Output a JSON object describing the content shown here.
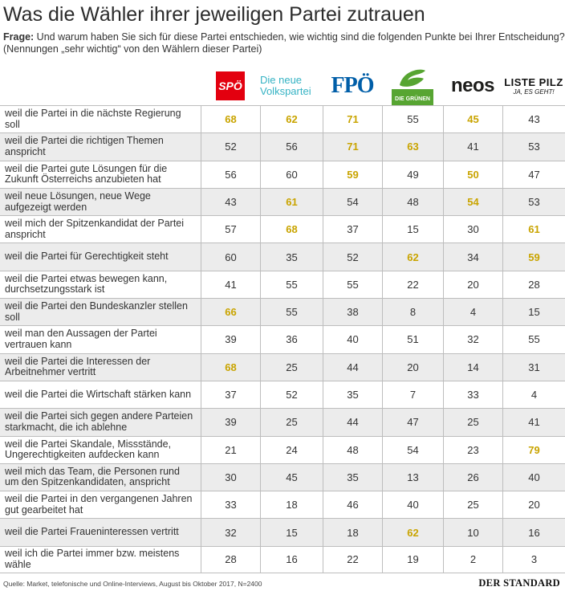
{
  "title": "Was die Wähler ihrer jeweiligen Partei zutrauen",
  "question": {
    "label": "Frage:",
    "text": " Und warum haben Sie sich für diese Partei entschieden, wie wichtig sind die folgenden Punkte bei Ihrer Entscheidung?",
    "note": "(Nennungen „sehr wichtig“ von den Wählern dieser Partei)"
  },
  "parties": [
    {
      "name": "SPÖ",
      "logo_text": "SPÖ",
      "color": "#e3000f"
    },
    {
      "name": "ÖVP",
      "logo_text": "Die neue Volkspartei",
      "logo_line1": "Die neue",
      "logo_line2": "Volkspartei",
      "color": "#36b3c4"
    },
    {
      "name": "FPÖ",
      "logo_text": "FPÖ",
      "color": "#005ea8"
    },
    {
      "name": "Die Grünen",
      "logo_text": "DIE GRÜNEN",
      "color": "#57a532"
    },
    {
      "name": "NEOS",
      "logo_text": "neos",
      "color": "#e84188"
    },
    {
      "name": "Liste Pilz",
      "logo_text": "LISTE PILZ",
      "logo_sub": "JA, ES GEHT!",
      "color": "#000000"
    }
  ],
  "highlight_color": "#c9a400",
  "chart_data": {
    "type": "table",
    "columns": [
      "SPÖ",
      "ÖVP",
      "FPÖ",
      "Die Grünen",
      "NEOS",
      "Liste Pilz"
    ],
    "rows": [
      {
        "label": "weil die Partei in die nächste Regierung soll",
        "values": [
          68,
          62,
          71,
          55,
          45,
          43
        ],
        "highlight": [
          true,
          true,
          true,
          false,
          true,
          false
        ]
      },
      {
        "label": "weil die Partei die richtigen Themen anspricht",
        "values": [
          52,
          56,
          71,
          63,
          41,
          53
        ],
        "highlight": [
          false,
          false,
          true,
          true,
          false,
          false
        ]
      },
      {
        "label": "weil die Partei gute Lösungen für die Zukunft Österreichs anzubieten hat",
        "values": [
          56,
          60,
          59,
          49,
          50,
          47
        ],
        "highlight": [
          false,
          false,
          true,
          false,
          true,
          false
        ]
      },
      {
        "label": "weil neue Lösungen, neue Wege aufgezeigt werden",
        "values": [
          43,
          61,
          54,
          48,
          54,
          53
        ],
        "highlight": [
          false,
          true,
          false,
          false,
          true,
          false
        ]
      },
      {
        "label": "weil mich der Spitzenkandidat der Partei anspricht",
        "values": [
          57,
          68,
          37,
          15,
          30,
          61
        ],
        "highlight": [
          false,
          true,
          false,
          false,
          false,
          true
        ]
      },
      {
        "label": "weil die Partei für Gerechtigkeit steht",
        "values": [
          60,
          35,
          52,
          62,
          34,
          59
        ],
        "highlight": [
          false,
          false,
          false,
          true,
          false,
          true
        ]
      },
      {
        "label": "weil die Partei etwas bewegen kann, durchsetzungsstark ist",
        "values": [
          41,
          55,
          55,
          22,
          20,
          28
        ],
        "highlight": [
          false,
          false,
          false,
          false,
          false,
          false
        ]
      },
      {
        "label": "weil die Partei den Bundeskanzler stellen soll",
        "values": [
          66,
          55,
          38,
          8,
          4,
          15
        ],
        "highlight": [
          true,
          false,
          false,
          false,
          false,
          false
        ]
      },
      {
        "label": "weil man den Aussagen der Partei vertrauen kann",
        "values": [
          39,
          36,
          40,
          51,
          32,
          55
        ],
        "highlight": [
          false,
          false,
          false,
          false,
          false,
          false
        ]
      },
      {
        "label": "weil die Partei die Interessen der Arbeitnehmer vertritt",
        "values": [
          68,
          25,
          44,
          20,
          14,
          31
        ],
        "highlight": [
          true,
          false,
          false,
          false,
          false,
          false
        ]
      },
      {
        "label": "weil die Partei die Wirtschaft stärken kann",
        "values": [
          37,
          52,
          35,
          7,
          33,
          4
        ],
        "highlight": [
          false,
          false,
          false,
          false,
          false,
          false
        ]
      },
      {
        "label": "weil die Partei sich gegen andere Parteien starkmacht, die ich ablehne",
        "values": [
          39,
          25,
          44,
          47,
          25,
          41
        ],
        "highlight": [
          false,
          false,
          false,
          false,
          false,
          false
        ]
      },
      {
        "label": "weil die Partei Skandale, Missstände, Ungerechtigkeiten aufdecken kann",
        "values": [
          21,
          24,
          48,
          54,
          23,
          79
        ],
        "highlight": [
          false,
          false,
          false,
          false,
          false,
          true
        ]
      },
      {
        "label": "weil mich das Team, die Personen rund um den Spitzenkandidaten, anspricht",
        "values": [
          30,
          45,
          35,
          13,
          26,
          40
        ],
        "highlight": [
          false,
          false,
          false,
          false,
          false,
          false
        ]
      },
      {
        "label": "weil die Partei in den vergangenen Jahren gut gearbeitet hat",
        "values": [
          33,
          18,
          46,
          40,
          25,
          20
        ],
        "highlight": [
          false,
          false,
          false,
          false,
          false,
          false
        ]
      },
      {
        "label": "weil die Partei Fraueninteressen vertritt",
        "values": [
          32,
          15,
          18,
          62,
          10,
          16
        ],
        "highlight": [
          false,
          false,
          false,
          true,
          false,
          false
        ]
      },
      {
        "label": "weil ich die Partei immer bzw. meistens wähle",
        "values": [
          28,
          16,
          22,
          19,
          2,
          3
        ],
        "highlight": [
          false,
          false,
          false,
          false,
          false,
          false
        ]
      }
    ]
  },
  "footer": {
    "source": "Quelle: Market, telefonische und Online-Interviews, August bis Oktober 2017, N=2400",
    "brand": "DER STANDARD"
  }
}
